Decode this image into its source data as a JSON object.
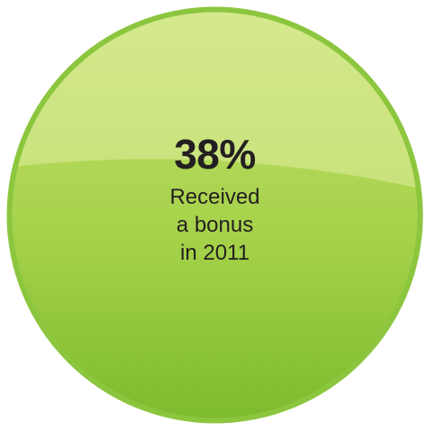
{
  "stat": {
    "value": "38%",
    "caption_lines": [
      "Received",
      "a bonus",
      "in 2011"
    ]
  },
  "colors": {
    "rim": "#8cc63f",
    "top_highlight": "#d2e68a",
    "body_light": "#b4d85a",
    "body_dark": "#7dbb2e",
    "text": "#231f20"
  }
}
